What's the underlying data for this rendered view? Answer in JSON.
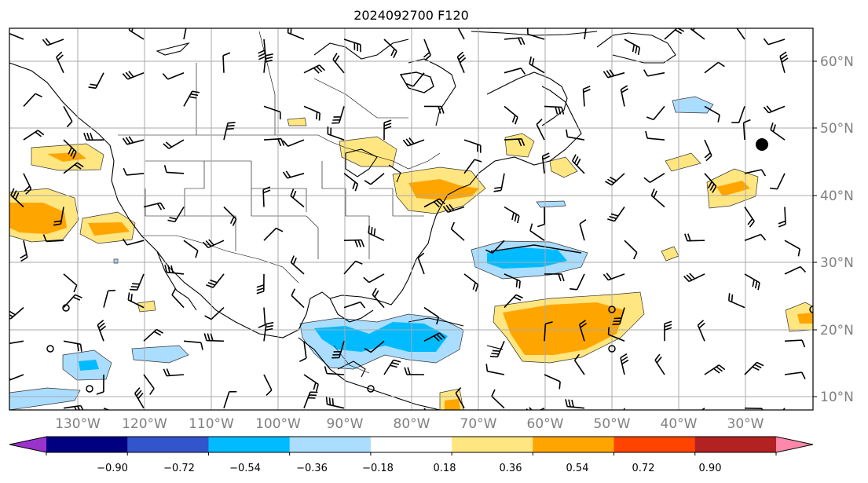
{
  "title": "2024092700 F120",
  "lat_labels": [
    "60°N",
    "50°N",
    "40°N",
    "30°N",
    "20°N",
    "10°N"
  ],
  "lon_labels": [
    "130°W",
    "120°W",
    "110°W",
    "100°W",
    "90°W",
    "80°W",
    "70°W",
    "60°W",
    "50°W",
    "40°W",
    "30°W"
  ],
  "colorbar": {
    "colors": [
      "#9933cc",
      "#000080",
      "#3355cc",
      "#00bbff",
      "#aaddff",
      "#ffffff",
      "#ffe680",
      "#ffa500",
      "#ff4400",
      "#b22222",
      "#ff88aa"
    ],
    "ticks": [
      "−0.90",
      "−0.72",
      "−0.54",
      "−0.36",
      "−0.18",
      "0.18",
      "0.36",
      "0.54",
      "0.72",
      "0.90"
    ]
  }
}
